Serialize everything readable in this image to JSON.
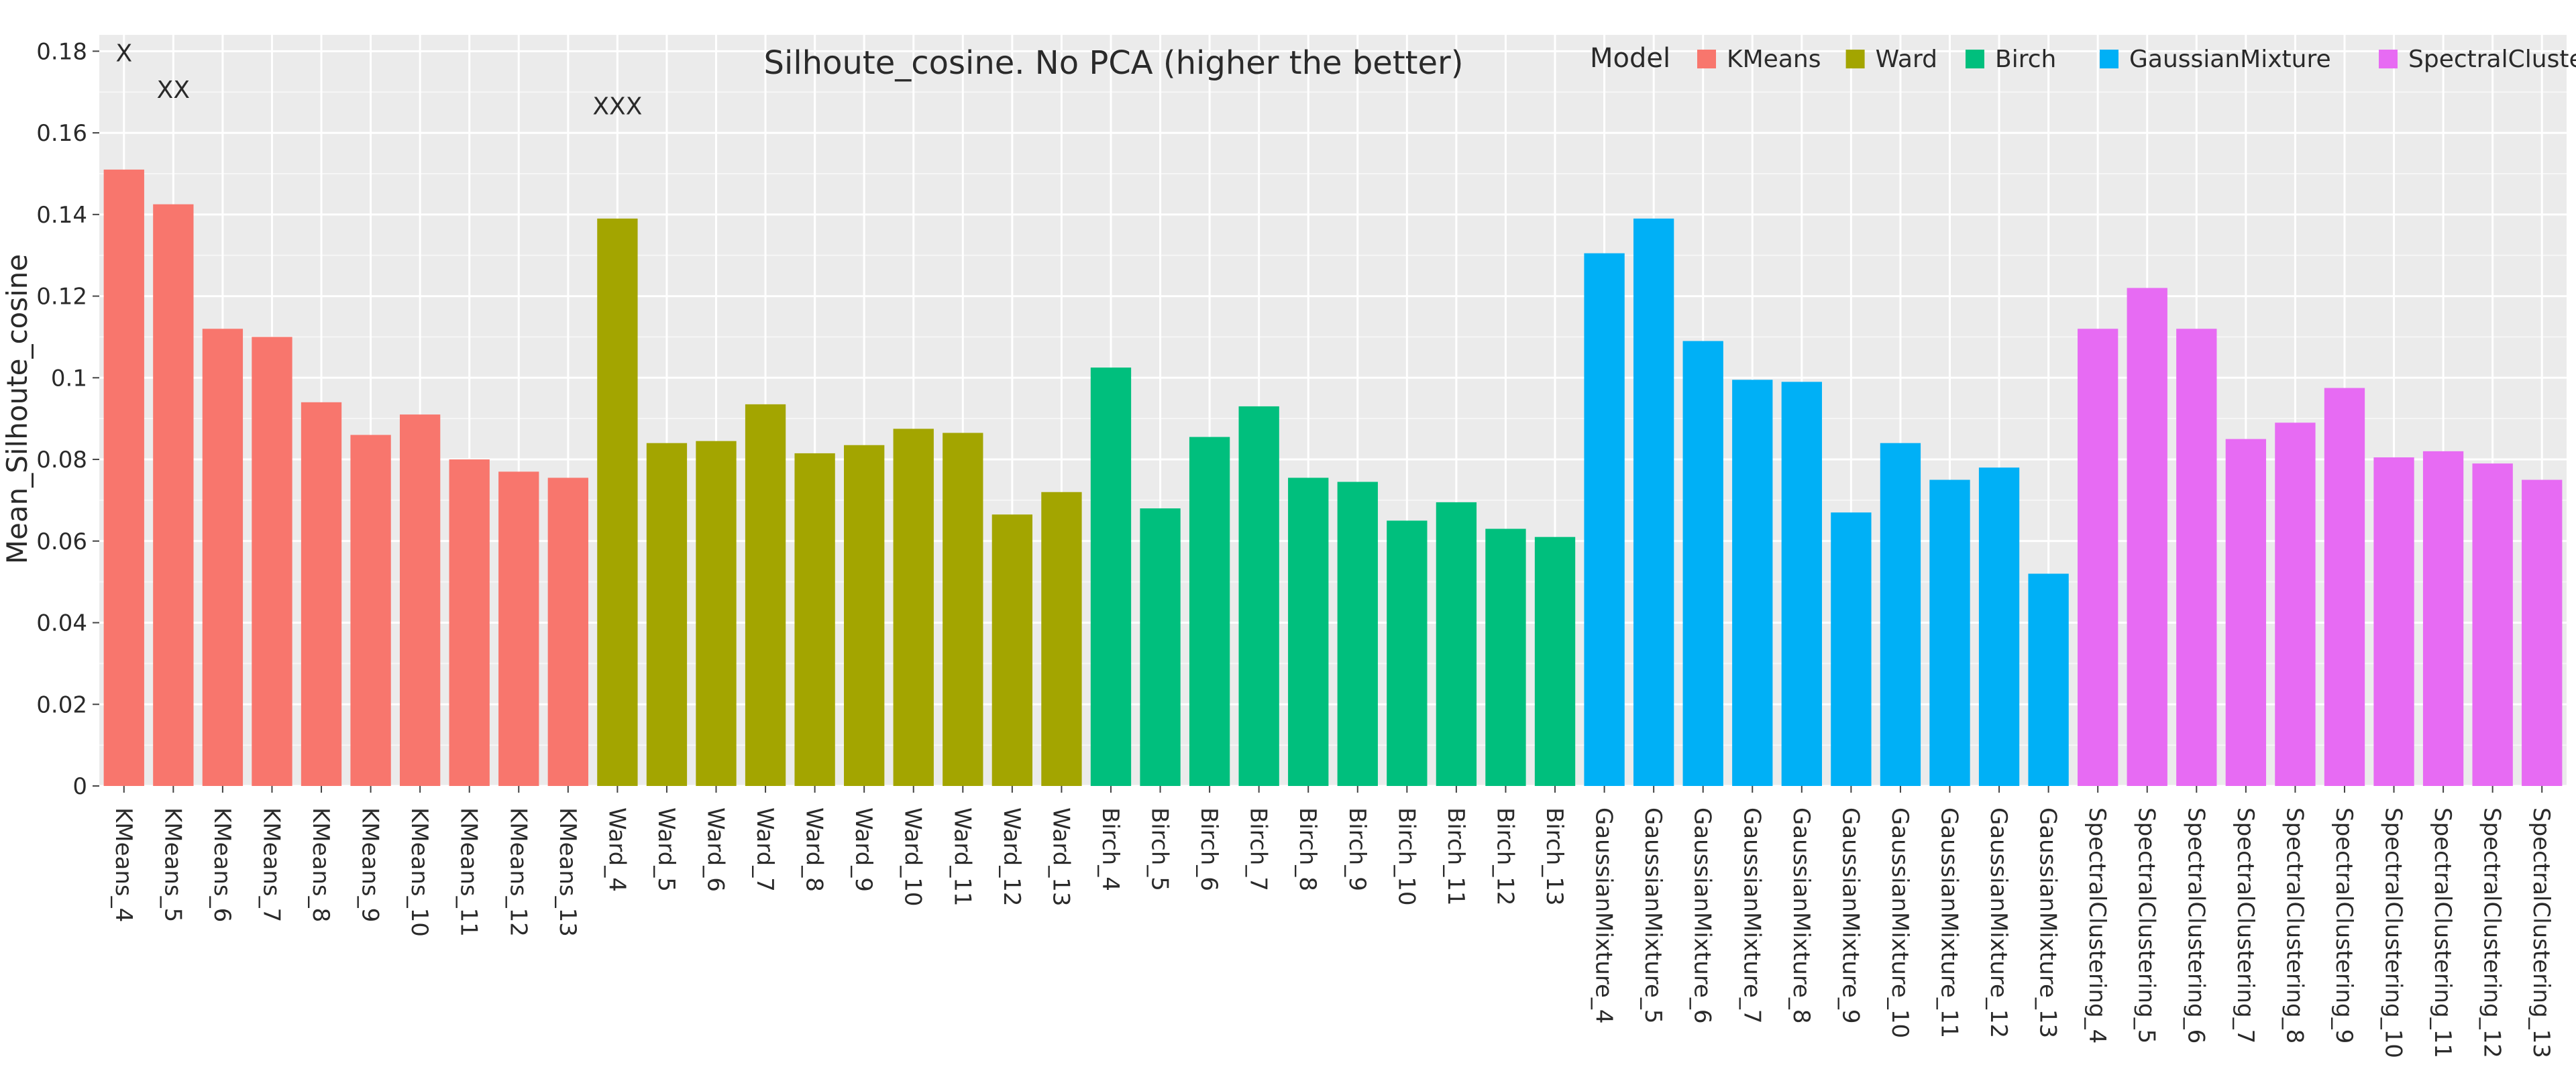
{
  "chart_data": {
    "type": "bar",
    "title": "Silhoute_cosine. No PCA (higher the better)",
    "xlabel": "",
    "ylabel": "Mean_Silhoute_cosine",
    "ylim": [
      0,
      0.184
    ],
    "yticks": [
      "0",
      "0.02",
      "0.04",
      "0.06",
      "0.08",
      "0.1",
      "0.12",
      "0.14",
      "0.16",
      "0.18"
    ],
    "grid": true,
    "legend_title": "Model",
    "legend_position": "top-right",
    "categories": [
      "KMeans_4",
      "KMeans_5",
      "KMeans_6",
      "KMeans_7",
      "KMeans_8",
      "KMeans_9",
      "KMeans_10",
      "KMeans_11",
      "KMeans_12",
      "KMeans_13",
      "Ward_4",
      "Ward_5",
      "Ward_6",
      "Ward_7",
      "Ward_8",
      "Ward_9",
      "Ward_10",
      "Ward_11",
      "Ward_12",
      "Ward_13",
      "Birch_4",
      "Birch_5",
      "Birch_6",
      "Birch_7",
      "Birch_8",
      "Birch_9",
      "Birch_10",
      "Birch_11",
      "Birch_12",
      "Birch_13",
      "GaussianMixture_4",
      "GaussianMixture_5",
      "GaussianMixture_6",
      "GaussianMixture_7",
      "GaussianMixture_8",
      "GaussianMixture_9",
      "GaussianMixture_10",
      "GaussianMixture_11",
      "GaussianMixture_12",
      "GaussianMixture_13",
      "SpectralClustering_4",
      "SpectralClustering_5",
      "SpectralClustering_6",
      "SpectralClustering_7",
      "SpectralClustering_8",
      "SpectralClustering_9",
      "SpectralClustering_10",
      "SpectralClustering_11",
      "SpectralClustering_12",
      "SpectralClustering_13"
    ],
    "values": [
      0.151,
      0.1425,
      0.112,
      0.11,
      0.094,
      0.086,
      0.091,
      0.08,
      0.077,
      0.0755,
      0.139,
      0.084,
      0.0845,
      0.0935,
      0.0815,
      0.0835,
      0.0875,
      0.0865,
      0.0665,
      0.072,
      0.1025,
      0.068,
      0.0855,
      0.093,
      0.0755,
      0.0745,
      0.065,
      0.0695,
      0.063,
      0.061,
      0.1305,
      0.139,
      0.109,
      0.0995,
      0.099,
      0.067,
      0.084,
      0.075,
      0.078,
      0.052,
      0.112,
      0.122,
      0.112,
      0.085,
      0.089,
      0.0975,
      0.0805,
      0.082,
      0.079,
      0.075
    ],
    "groups": [
      {
        "name": "KMeans",
        "color": "#F8766D",
        "count": 10
      },
      {
        "name": "Ward",
        "color": "#A3A500",
        "count": 10
      },
      {
        "name": "Birch",
        "color": "#00BF7D",
        "count": 10
      },
      {
        "name": "GaussianMixture",
        "color": "#00B0F6",
        "count": 10
      },
      {
        "name": "SpectralClustering",
        "color": "#E76BF3",
        "count": 10
      }
    ],
    "annotations": [
      {
        "text": "X",
        "category": "KMeans_4",
        "y": 0.1795
      },
      {
        "text": "XX",
        "category": "KMeans_5",
        "y": 0.1705
      },
      {
        "text": "XXX",
        "category": "Ward_4",
        "y": 0.1665
      }
    ]
  }
}
